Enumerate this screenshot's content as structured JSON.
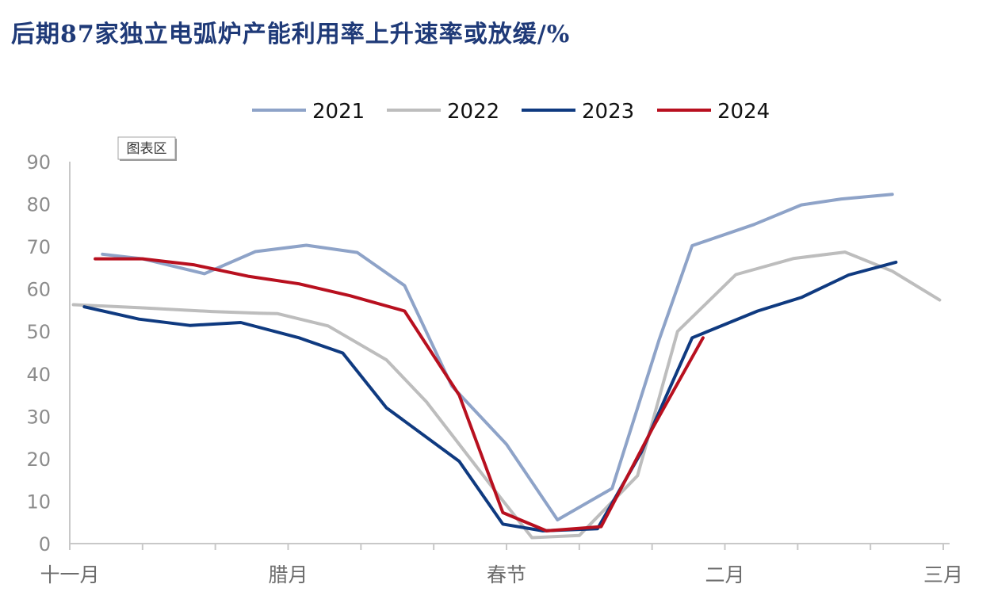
{
  "chart_data": {
    "type": "line",
    "title": "后期87家独立电弧炉产能利用率上升速率或放缓/%",
    "tag": "图表区",
    "xlabel": "",
    "ylabel": "",
    "ylim": [
      0,
      90
    ],
    "yticks": [
      0,
      10,
      20,
      30,
      40,
      50,
      60,
      70,
      80,
      90
    ],
    "xlim": [
      0,
      12
    ],
    "x_ticks": [
      0,
      1,
      2,
      3,
      4,
      5,
      6,
      7,
      8,
      9,
      10,
      11,
      12
    ],
    "x_labels": [
      {
        "x": 0,
        "label": "十一月"
      },
      {
        "x": 3,
        "label": "腊月"
      },
      {
        "x": 6,
        "label": "春节"
      },
      {
        "x": 9,
        "label": "二月"
      },
      {
        "x": 12,
        "label": "三月"
      }
    ],
    "legend_position": "top-center",
    "grid": false,
    "series": [
      {
        "name": "2021",
        "color": "#8ea3c8",
        "points": [
          [
            0.45,
            68.2
          ],
          [
            1.0,
            67.1
          ],
          [
            1.85,
            63.6
          ],
          [
            2.55,
            68.8
          ],
          [
            3.25,
            70.3
          ],
          [
            3.95,
            68.6
          ],
          [
            4.6,
            60.8
          ],
          [
            5.25,
            37.1
          ],
          [
            6.0,
            23.4
          ],
          [
            6.7,
            5.6
          ],
          [
            7.45,
            13.0
          ],
          [
            8.1,
            48.2
          ],
          [
            8.55,
            70.2
          ],
          [
            9.4,
            75.2
          ],
          [
            10.05,
            79.8
          ],
          [
            10.6,
            81.2
          ],
          [
            11.3,
            82.3
          ]
        ]
      },
      {
        "name": "2022",
        "color": "#bdbdbd",
        "points": [
          [
            0.05,
            56.3
          ],
          [
            0.95,
            55.6
          ],
          [
            1.95,
            54.7
          ],
          [
            2.6,
            54.3
          ],
          [
            2.85,
            54.2
          ],
          [
            3.55,
            51.3
          ],
          [
            4.35,
            43.3
          ],
          [
            4.9,
            33.4
          ],
          [
            5.85,
            12.3
          ],
          [
            6.35,
            1.4
          ],
          [
            7.0,
            1.9
          ],
          [
            7.8,
            16.0
          ],
          [
            8.35,
            50.0
          ],
          [
            9.15,
            63.4
          ],
          [
            9.95,
            67.2
          ],
          [
            10.65,
            68.7
          ],
          [
            11.3,
            64.2
          ],
          [
            11.95,
            57.4
          ]
        ]
      },
      {
        "name": "2023",
        "color": "#0f3a80",
        "points": [
          [
            0.2,
            55.8
          ],
          [
            0.95,
            52.9
          ],
          [
            1.65,
            51.4
          ],
          [
            2.35,
            52.1
          ],
          [
            3.15,
            48.5
          ],
          [
            3.75,
            44.9
          ],
          [
            4.35,
            32.0
          ],
          [
            5.35,
            19.4
          ],
          [
            5.95,
            4.6
          ],
          [
            6.5,
            3.0
          ],
          [
            7.25,
            3.5
          ],
          [
            7.85,
            21.5
          ],
          [
            8.55,
            48.5
          ],
          [
            9.45,
            54.8
          ],
          [
            10.05,
            58.0
          ],
          [
            10.7,
            63.3
          ],
          [
            11.35,
            66.3
          ]
        ]
      },
      {
        "name": "2024",
        "color": "#b8101f",
        "points": [
          [
            0.35,
            67.1
          ],
          [
            1.0,
            67.1
          ],
          [
            1.7,
            65.7
          ],
          [
            2.45,
            63.0
          ],
          [
            3.15,
            61.2
          ],
          [
            3.85,
            58.4
          ],
          [
            4.6,
            54.8
          ],
          [
            5.35,
            35.0
          ],
          [
            5.95,
            7.3
          ],
          [
            6.55,
            3.0
          ],
          [
            7.3,
            4.0
          ],
          [
            8.0,
            27.0
          ],
          [
            8.7,
            48.5
          ]
        ]
      }
    ]
  }
}
